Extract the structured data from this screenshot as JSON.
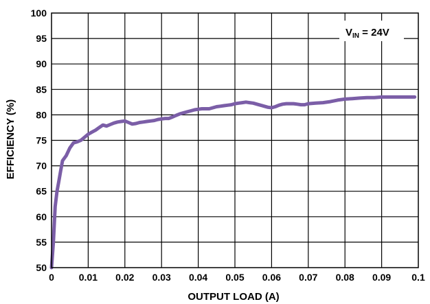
{
  "chart_data": {
    "type": "line",
    "xlabel": "OUTPUT LOAD (A)",
    "ylabel": "EFFICIENCY (%)",
    "xlim": [
      0,
      0.1
    ],
    "ylim": [
      50,
      100
    ],
    "grid": true,
    "x_ticks": [
      "0",
      "0.01",
      "0.02",
      "0.03",
      "0.04",
      "0.05",
      "0.06",
      "0.07",
      "0.08",
      "0.09",
      "0.1"
    ],
    "y_ticks": [
      "50",
      "55",
      "60",
      "65",
      "70",
      "75",
      "80",
      "85",
      "90",
      "95",
      "100"
    ],
    "line_color": "#7b5ea7",
    "annotation": {
      "main": "V",
      "sub": "IN",
      "rest": " = 24V"
    },
    "series": [
      {
        "x": [
          0,
          0.0005,
          0.001,
          0.0015,
          0.002,
          0.0025,
          0.003,
          0.004,
          0.005,
          0.006,
          0.007,
          0.008,
          0.009,
          0.01,
          0.011,
          0.012,
          0.013,
          0.014,
          0.015,
          0.016,
          0.017,
          0.018,
          0.019,
          0.02,
          0.021,
          0.022,
          0.023,
          0.024,
          0.025,
          0.026,
          0.027,
          0.028,
          0.029,
          0.03,
          0.031,
          0.032,
          0.033,
          0.034,
          0.035,
          0.036,
          0.037,
          0.038,
          0.039,
          0.04,
          0.041,
          0.042,
          0.043,
          0.044,
          0.045,
          0.046,
          0.047,
          0.048,
          0.049,
          0.05,
          0.051,
          0.052,
          0.053,
          0.054,
          0.055,
          0.056,
          0.057,
          0.058,
          0.059,
          0.06,
          0.061,
          0.062,
          0.063,
          0.064,
          0.065,
          0.066,
          0.067,
          0.068,
          0.069,
          0.07,
          0.072,
          0.074,
          0.076,
          0.078,
          0.08,
          0.082,
          0.084,
          0.086,
          0.088,
          0.09,
          0.092,
          0.094,
          0.096,
          0.098,
          0.099
        ],
        "y": [
          50,
          55,
          62,
          65,
          67,
          69,
          71,
          72,
          73.5,
          74.5,
          74.7,
          75,
          75.6,
          76.2,
          76.6,
          77,
          77.5,
          78,
          77.8,
          78.1,
          78.4,
          78.6,
          78.7,
          78.8,
          78.5,
          78.2,
          78.3,
          78.5,
          78.6,
          78.7,
          78.8,
          78.9,
          79.1,
          79.2,
          79.3,
          79.3,
          79.6,
          79.9,
          80.2,
          80.4,
          80.6,
          80.8,
          81,
          81.1,
          81.2,
          81.2,
          81.2,
          81.4,
          81.6,
          81.7,
          81.8,
          81.9,
          82,
          82.2,
          82.3,
          82.4,
          82.5,
          82.4,
          82.3,
          82.1,
          81.9,
          81.7,
          81.5,
          81.4,
          81.6,
          81.9,
          82.1,
          82.2,
          82.2,
          82.2,
          82.1,
          82,
          82,
          82.2,
          82.3,
          82.4,
          82.6,
          82.9,
          83.1,
          83.2,
          83.3,
          83.4,
          83.4,
          83.5,
          83.5,
          83.5,
          83.5,
          83.5,
          83.5
        ]
      }
    ]
  }
}
